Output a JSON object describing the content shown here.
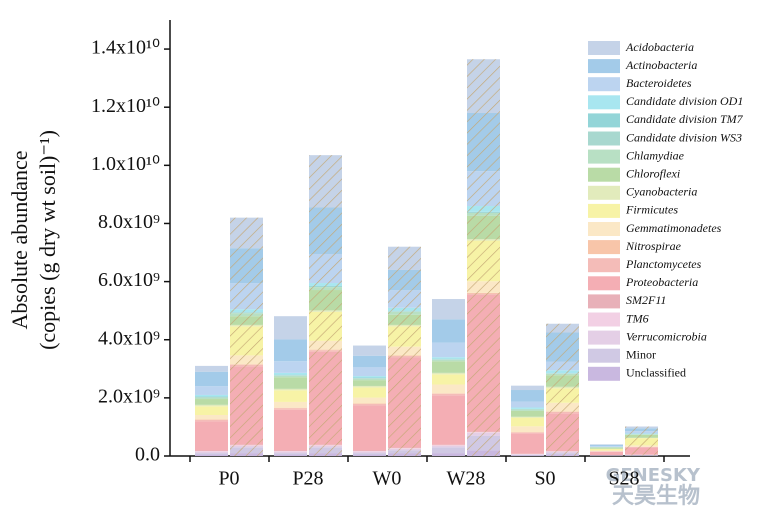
{
  "chart_data": {
    "type": "stacked-bar",
    "y_label": [
      "Absolute abundance",
      "(copies (g dry wt soil)⁻¹)"
    ],
    "categories": [
      "P0",
      null,
      "P28",
      null,
      "W0",
      null,
      "W28",
      null,
      "S0",
      null,
      "S28",
      null
    ],
    "ylim": [
      0,
      15000000000
    ],
    "yticks": [
      {
        "value": 0,
        "label": "0.0"
      },
      {
        "value": 2000000000,
        "label": "2.0x10⁹"
      },
      {
        "value": 4000000000,
        "label": "4.0x10⁹"
      },
      {
        "value": 6000000000,
        "label": "6.0x10⁹"
      },
      {
        "value": 8000000000,
        "label": "8.0x10⁹"
      },
      {
        "value": 10000000000,
        "label": "1.0x10¹⁰"
      },
      {
        "value": 12000000000,
        "label": "1.2x10¹⁰"
      },
      {
        "value": 14000000000,
        "label": "1.4x10¹⁰"
      }
    ],
    "legend": "top-right",
    "series": [
      {
        "name": "Unclassified",
        "color": "#c9b8e0",
        "values": [
          50000000.0,
          100000000.0,
          50000000.0,
          100000000.0,
          50000000.0,
          100000000.0,
          100000000.0,
          200000000.0,
          20000000.0,
          50000000.0,
          10000000.0,
          10000000.0
        ]
      },
      {
        "name": "Minor",
        "color": "#d0c9e4",
        "values": [
          50000000.0,
          200000000.0,
          50000000.0,
          200000000.0,
          50000000.0,
          100000000.0,
          200000000.0,
          500000000.0,
          20000000.0,
          50000000.0,
          10000000.0,
          20000000.0
        ]
      },
      {
        "name": "Verrucomicrobia",
        "color": "#e4cfe6",
        "values": [
          50000000.0,
          50000000.0,
          50000000.0,
          50000000.0,
          50000000.0,
          50000000.0,
          50000000.0,
          100000000.0,
          20000000.0,
          50000000.0,
          5000000.0,
          10000000.0
        ]
      },
      {
        "name": "TM6",
        "color": "#f2d0e4",
        "values": [
          20000000.0,
          20000000.0,
          20000000.0,
          20000000.0,
          20000000.0,
          20000000.0,
          20000000.0,
          20000000.0,
          10000000.0,
          10000000.0,
          2000000.0,
          5000000.0
        ]
      },
      {
        "name": "SM2F11",
        "color": "#e8b0b8",
        "values": [
          20000000.0,
          20000000.0,
          20000000.0,
          20000000.0,
          20000000.0,
          20000000.0,
          20000000.0,
          20000000.0,
          10000000.0,
          10000000.0,
          2000000.0,
          5000000.0
        ]
      },
      {
        "name": "Proteobacteria",
        "color": "#f4aeb4",
        "values": [
          1000000000.0,
          2700000000.0,
          1400000000.0,
          3200000000.0,
          1550000000.0,
          3100000000.0,
          1700000000.0,
          4700000000.0,
          700000000.0,
          1300000000.0,
          120000000.0,
          250000000.0
        ]
      },
      {
        "name": "Planctomycetes",
        "color": "#f4bcb8",
        "values": [
          50000000.0,
          50000000.0,
          50000000.0,
          50000000.0,
          50000000.0,
          50000000.0,
          50000000.0,
          50000000.0,
          30000000.0,
          50000000.0,
          10000000.0,
          10000000.0
        ]
      },
      {
        "name": "Nitrospirae",
        "color": "#f8c5a9",
        "values": [
          20000000.0,
          20000000.0,
          20000000.0,
          20000000.0,
          20000000.0,
          20000000.0,
          20000000.0,
          20000000.0,
          10000000.0,
          10000000.0,
          2000000.0,
          5000000.0
        ]
      },
      {
        "name": "Gemmatimonadetes",
        "color": "#fbe8c6",
        "values": [
          150000000.0,
          300000000.0,
          200000000.0,
          300000000.0,
          200000000.0,
          300000000.0,
          300000000.0,
          400000000.0,
          200000000.0,
          300000000.0,
          30000000.0,
          50000000.0
        ]
      },
      {
        "name": "Firmicutes",
        "color": "#f7f3a6",
        "values": [
          300000000.0,
          1000000000.0,
          400000000.0,
          1000000000.0,
          350000000.0,
          700000000.0,
          350000000.0,
          1400000000.0,
          300000000.0,
          500000000.0,
          50000000.0,
          250000000.0
        ]
      },
      {
        "name": "Cyanobacteria",
        "color": "#e2ebbc",
        "values": [
          50000000.0,
          50000000.0,
          50000000.0,
          50000000.0,
          50000000.0,
          50000000.0,
          50000000.0,
          50000000.0,
          30000000.0,
          50000000.0,
          10000000.0,
          10000000.0
        ]
      },
      {
        "name": "Chloroflexi",
        "color": "#b9dba6",
        "values": [
          200000000.0,
          300000000.0,
          400000000.0,
          700000000.0,
          200000000.0,
          350000000.0,
          400000000.0,
          800000000.0,
          200000000.0,
          400000000.0,
          40000000.0,
          100000000.0
        ]
      },
      {
        "name": "Chlamydiae",
        "color": "#b8e0c4",
        "values": [
          50000000.0,
          100000000.0,
          50000000.0,
          100000000.0,
          50000000.0,
          100000000.0,
          50000000.0,
          100000000.0,
          50000000.0,
          50000000.0,
          10000000.0,
          20000000.0
        ]
      },
      {
        "name": "Candidate division WS3",
        "color": "#a8d8cf",
        "values": [
          20000000.0,
          20000000.0,
          20000000.0,
          20000000.0,
          20000000.0,
          20000000.0,
          20000000.0,
          20000000.0,
          10000000.0,
          10000000.0,
          2000000.0,
          5000000.0
        ]
      },
      {
        "name": "Candidate division TM7",
        "color": "#93d5d8",
        "values": [
          20000000.0,
          20000000.0,
          20000000.0,
          20000000.0,
          20000000.0,
          20000000.0,
          20000000.0,
          20000000.0,
          10000000.0,
          10000000.0,
          2000000.0,
          5000000.0
        ]
      },
      {
        "name": "Candidate division OD1",
        "color": "#a8e6f0",
        "values": [
          50000000.0,
          100000000.0,
          60000000.0,
          100000000.0,
          50000000.0,
          100000000.0,
          50000000.0,
          200000000.0,
          50000000.0,
          100000000.0,
          10000000.0,
          20000000.0
        ]
      },
      {
        "name": "Bacteroidetes",
        "color": "#bcd4f0",
        "values": [
          300000000.0,
          900000000.0,
          400000000.0,
          1000000000.0,
          300000000.0,
          600000000.0,
          500000000.0,
          1200000000.0,
          200000000.0,
          300000000.0,
          30000000.0,
          80000000.0
        ]
      },
      {
        "name": "Actinobacteria",
        "color": "#a3cbe9",
        "values": [
          500000000.0,
          1200000000.0,
          750000000.0,
          1600000000.0,
          400000000.0,
          700000000.0,
          800000000.0,
          2000000000.0,
          400000000.0,
          1000000000.0,
          40000000.0,
          100000000.0
        ]
      },
      {
        "name": "Acidobacteria",
        "color": "#c5d3e8",
        "values": [
          200000000.0,
          1050000000.0,
          800000000.0,
          1800000000.0,
          350000000.0,
          800000000.0,
          700000000.0,
          1850000000.0,
          150000000.0,
          300000000.0,
          20000000.0,
          60000000.0
        ]
      }
    ]
  },
  "watermark": [
    "GENESKY",
    "天昊生物"
  ]
}
